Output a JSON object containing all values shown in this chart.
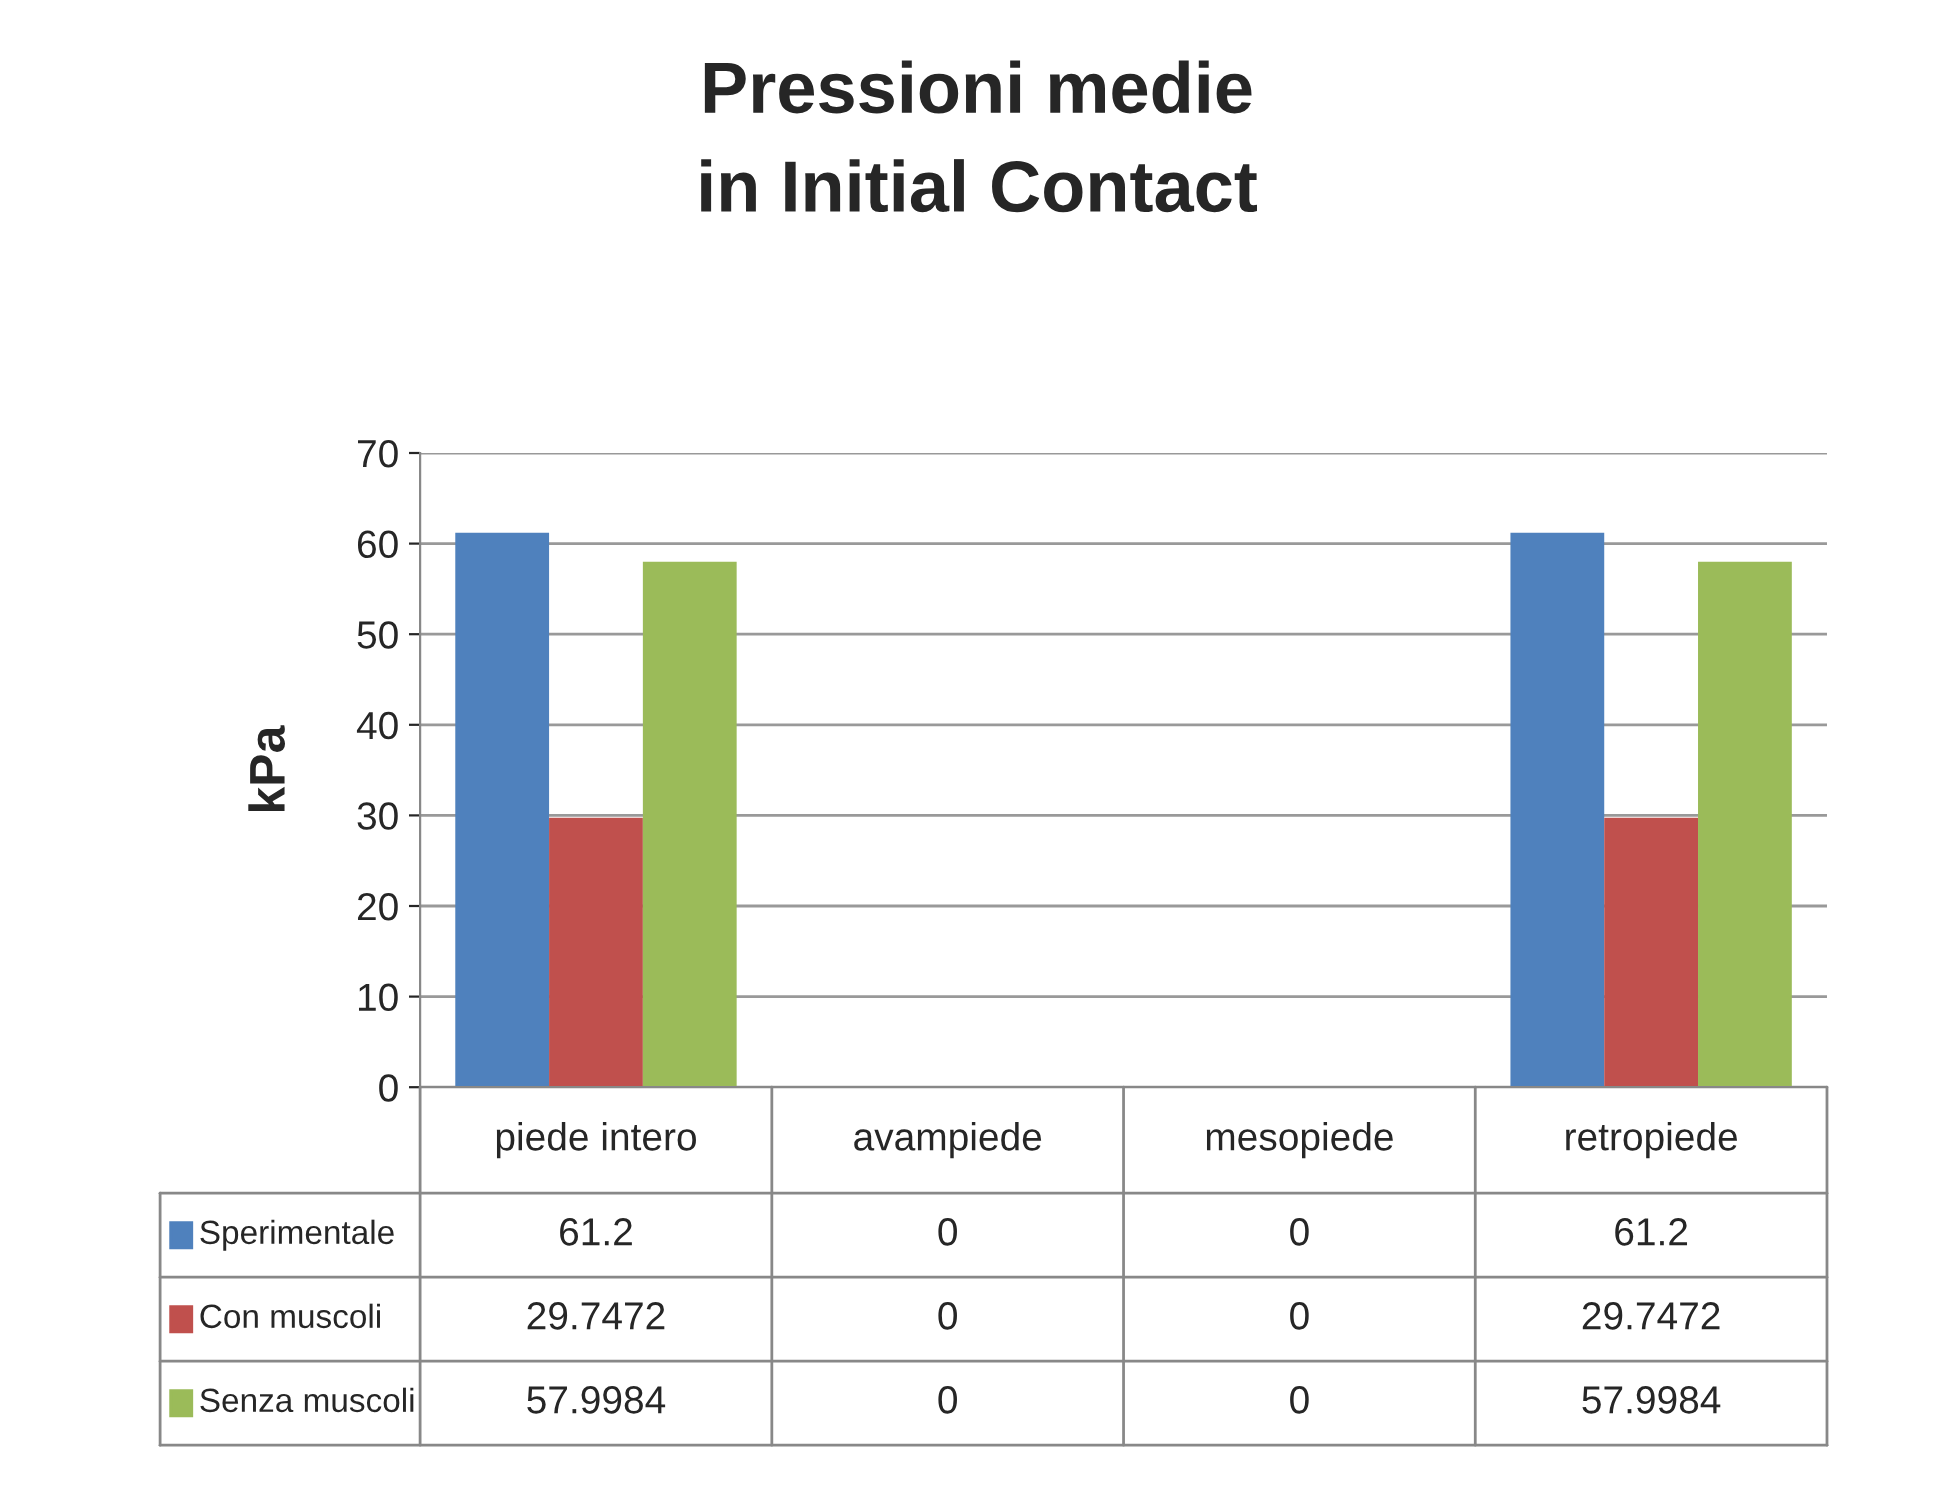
{
  "chart_data": {
    "type": "bar",
    "title": "Pressioni medie\nin Initial Contact",
    "ylabel": "kPa",
    "categories": [
      "piede intero",
      "avampiede",
      "mesopiede",
      "retropiede"
    ],
    "series": [
      {
        "name": "Sperimentale",
        "color": "#4f81bd",
        "values": [
          61.2,
          0,
          0,
          61.2
        ]
      },
      {
        "name": "Con muscoli",
        "color": "#c0504d",
        "values": [
          29.7472,
          0,
          0,
          29.7472
        ]
      },
      {
        "name": "Senza muscoli",
        "color": "#9bbb59",
        "values": [
          57.9984,
          0,
          0,
          57.9984
        ]
      }
    ],
    "ylim": [
      0,
      70
    ],
    "yticks": [
      0,
      10,
      20,
      30,
      40,
      50,
      60,
      70
    ],
    "grid": "y",
    "legend": "bottom",
    "data_labels": true
  }
}
